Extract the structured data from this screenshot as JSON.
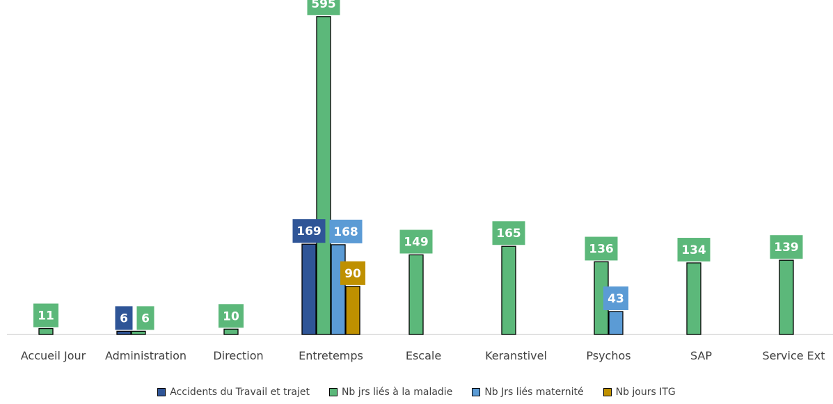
{
  "chart_data": {
    "type": "bar",
    "categories": [
      "Accueil Jour",
      "Administration",
      "Direction",
      "Entretemps",
      "Escale",
      "Keranstivel",
      "Psychos",
      "SAP",
      "Service Ext"
    ],
    "series": [
      {
        "name": "Accidents du Travail et trajet",
        "color": "#2f5597",
        "values": [
          null,
          6,
          null,
          169,
          null,
          null,
          null,
          null,
          null
        ]
      },
      {
        "name": "Nb jrs liés à la maladie",
        "color": "#5cb87a",
        "values": [
          11,
          6,
          10,
          595,
          149,
          165,
          136,
          134,
          139
        ]
      },
      {
        "name": "Nb Jrs liés maternité",
        "color": "#5b9bd5",
        "values": [
          null,
          null,
          null,
          168,
          null,
          null,
          43,
          null,
          null
        ]
      },
      {
        "name": "Nb jours ITG",
        "color": "#bf9000",
        "values": [
          null,
          null,
          null,
          90,
          null,
          null,
          null,
          null,
          null
        ]
      }
    ],
    "ylim": [
      0,
      600
    ],
    "grid": false,
    "legend_position": "bottom"
  }
}
